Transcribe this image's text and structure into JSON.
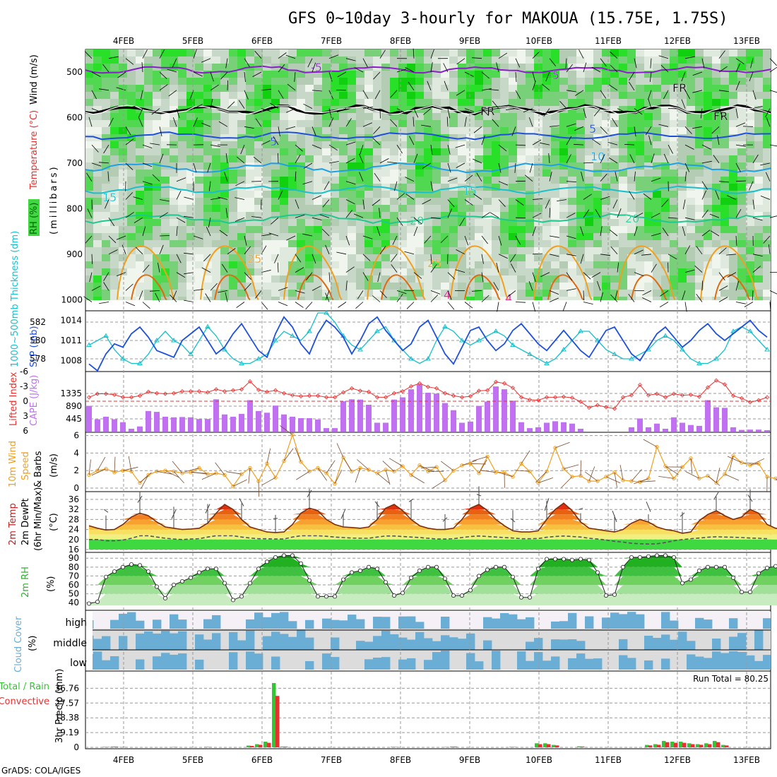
{
  "title": "GFS 0~10day 3-hourly for MAKOUA (15.75E, 1.75S)",
  "footer": "GrADS: COLA/IGES",
  "days": [
    "4FEB",
    "5FEB",
    "6FEB",
    "7FEB",
    "8FEB",
    "9FEB",
    "10FEB",
    "11FEB",
    "12FEB",
    "13FEB"
  ],
  "colors": {
    "purple": "#8a1ec8",
    "black": "#000000",
    "blue": "#1e50dc",
    "lightblue": "#1ea0e6",
    "cyan": "#18c0cc",
    "teal": "#1ec890",
    "orange": "#f0a020",
    "darkorange": "#e06a10",
    "magenta": "#e0108c",
    "rh_green": "#40d840",
    "cape": "#c070f0",
    "rain": "#30c830",
    "conv": "#e83030",
    "cloud": "#6aaed6",
    "cloud_bg": "#dcdcdc"
  },
  "panel_labels": {
    "upper": {
      "rh": "RH (%)",
      "temp": "Temperature (°C)",
      "wind": "Wind (m/s)",
      "mb": "(millibars)"
    },
    "thick": {
      "thick": "1000~500mb Thickness (dm)",
      "slp": "SLP (mb)"
    },
    "li": {
      "li": "Lifted Index",
      "cape": "CAPE (J/kg)"
    },
    "wind10": {
      "wind": "10m Wind",
      "speed": "Speed",
      "barbs": "& Barbs",
      "unit": "(m/s)"
    },
    "temp2m": {
      "t1": "2m Temp",
      "t2": "2m DewPt",
      "t3": "(6hr Min/Max)",
      "unit": "(°C)"
    },
    "rh2m": {
      "rh": "2m RH",
      "unit": "(%)"
    },
    "cloud": {
      "cloud": "Cloud Cover",
      "unit": "(%)"
    },
    "precip": {
      "total": "Total / Rain",
      "conv": "Convective",
      "precip": "3hr Precip (mm)",
      "run_total": "Run Total = 80.25"
    }
  },
  "chart_data": [
    {
      "name": "upper-air",
      "type": "heatmap",
      "yticks": [
        "500",
        "600",
        "700",
        "800",
        "900",
        "1000"
      ],
      "ylim": [
        1000,
        450
      ],
      "contour_labels": [
        "-5",
        "-5",
        "FR",
        "FR",
        "FR",
        "5",
        "5",
        "10",
        "15",
        "15",
        "20",
        "20",
        "25",
        "25",
        "4",
        "4"
      ]
    },
    {
      "name": "thickness-slp",
      "type": "line",
      "yticks_left": [
        "582",
        "580",
        "578"
      ],
      "yticks_right": [
        "1014",
        "1011",
        "1008"
      ],
      "thickness": [
        579.5,
        580,
        580.5,
        579,
        578,
        577.5,
        577.5,
        578.5,
        580,
        581,
        580,
        579.5,
        578.5,
        580,
        581.5,
        580.5,
        579,
        578,
        577.5,
        577.5,
        578,
        578.5,
        580,
        581,
        580.5,
        580,
        581,
        583,
        583,
        582,
        580.5,
        579.5,
        579,
        580,
        581,
        581.5,
        580,
        579,
        578,
        577.5,
        578,
        580,
        581.5,
        581,
        580,
        579.5,
        580,
        580.5,
        581,
        580.5,
        579.5,
        579,
        578.5,
        578,
        577.5,
        578,
        579,
        580,
        581,
        581,
        580,
        579,
        578.5,
        578,
        578,
        578.5,
        579,
        580,
        580.5,
        580,
        579,
        578,
        577.5,
        577.5,
        578,
        579,
        581,
        581.5,
        581,
        580,
        579
      ],
      "slp": [
        1007.5,
        1006.5,
        1009,
        1010.5,
        1010,
        1012,
        1013,
        1011.5,
        1009.5,
        1009,
        1008.5,
        1011,
        1012,
        1013,
        1011,
        1009,
        1010,
        1012,
        1013.5,
        1011.5,
        1009.5,
        1008.5,
        1012,
        1014.5,
        1013,
        1010.5,
        1009,
        1012,
        1014,
        1013,
        1011.5,
        1009,
        1011,
        1013.5,
        1014.5,
        1012.5,
        1011,
        1009.5,
        1010.5,
        1013,
        1014,
        1011.5,
        1009,
        1007.5,
        1010,
        1012.5,
        1013,
        1011,
        1009.5,
        1010.5,
        1012.5,
        1013.5,
        1012,
        1010.5,
        1009.5,
        1011,
        1012.5,
        1011,
        1009.5,
        1008.5,
        1010.5,
        1012.5,
        1013,
        1011,
        1009,
        1008,
        1010,
        1012,
        1013,
        1011.5,
        1010,
        1011,
        1012.5,
        1013.5,
        1012,
        1011,
        1012,
        1013,
        1014,
        1012.5,
        1011.5
      ]
    },
    {
      "name": "lifted-index-cape",
      "type": "bar",
      "yticks_left": [
        "-6",
        "-3",
        "0",
        "3",
        "6"
      ],
      "yticks_right": [
        "1335",
        "890",
        "445"
      ],
      "cape": [
        900,
        430,
        520,
        430,
        330,
        100,
        180,
        720,
        690,
        520,
        500,
        510,
        500,
        440,
        440,
        1130,
        600,
        520,
        620,
        1100,
        720,
        660,
        910,
        600,
        520,
        470,
        470,
        420,
        120,
        120,
        1060,
        1130,
        1120,
        940,
        310,
        310,
        1120,
        1200,
        1480,
        1650,
        1360,
        1330,
        1000,
        750,
        310,
        350,
        900,
        1050,
        1580,
        1480,
        1080,
        330,
        120,
        150,
        310,
        360,
        330,
        280,
        100,
        0,
        0,
        0,
        0,
        0,
        150,
        460,
        150,
        280,
        100,
        500,
        310,
        230,
        200,
        1100,
        850,
        830,
        150,
        60,
        70,
        70,
        50
      ],
      "lifted_index": [
        -0.8,
        -1.5,
        -1.5,
        -1.3,
        -0.8,
        -0.8,
        -1.1,
        -1.9,
        -1.6,
        -1.5,
        -1.6,
        -2,
        -2,
        -2,
        -1.8,
        -2.4,
        -2,
        -2.2,
        -2.4,
        -4,
        -2.3,
        -1.9,
        -2.2,
        -1.6,
        -1.2,
        -1,
        -1.1,
        -1.1,
        -0.8,
        -0.8,
        -1.8,
        -2.6,
        -2.1,
        -1.9,
        -0.8,
        -0.8,
        -1.6,
        -2,
        -3,
        -3.6,
        -2.9,
        -2.6,
        -1.6,
        -1.1,
        -0.8,
        -1,
        -2.1,
        -2.2,
        -3.9,
        -3.6,
        -2.7,
        -0.8,
        -0.3,
        -0.2,
        -0.8,
        -0.8,
        -0.9,
        -0.7,
        0.1,
        1.3,
        0.8,
        1.2,
        1.5,
        -0.8,
        -1.2,
        -3.3,
        -1.2,
        -1.5,
        -0.8,
        -1.5,
        -1.2,
        -1.3,
        -0.9,
        -2.8,
        -4.2,
        -3.4,
        -1.1,
        -0.6,
        0.2,
        -0.2,
        -0.8
      ]
    },
    {
      "name": "10m-wind",
      "type": "line",
      "yticks": [
        "6",
        "4",
        "2",
        "0"
      ],
      "speed": [
        1.5,
        2,
        2.2,
        1.8,
        2,
        1.9,
        0.6,
        1.5,
        1.9,
        2,
        1.9,
        1.7,
        1.8,
        2.3,
        1.6,
        1.7,
        1.5,
        0.2,
        1.6,
        2.3,
        0.8,
        2.8,
        1.2,
        3.1,
        6.1,
        3,
        1.9,
        2.3,
        1.7,
        0.5,
        3.5,
        1.9,
        2.3,
        2.1,
        1.7,
        2.1,
        1.9,
        2.5,
        1.5,
        2.6,
        1.9,
        2.4,
        0.9,
        2,
        2.6,
        2.8,
        1.7,
        3.6,
        1.8,
        1.8,
        1.3,
        2.8,
        1.9,
        0.6,
        1.9,
        4.6,
        2.2,
        1.3,
        1.4,
        0.8,
        0.8,
        1.3,
        1.8,
        0.9,
        0.8,
        0.7,
        1.1,
        4.7,
        2.5,
        1.1,
        2.4,
        3.4,
        1.1,
        1.4,
        0.6,
        1.6,
        3.7,
        2.9,
        2.6,
        2.8,
        1.3,
        1.1,
        0.4
      ]
    },
    {
      "name": "2m-temp",
      "type": "area",
      "yticks": [
        "36",
        "32",
        "28",
        "24",
        "20",
        "16"
      ],
      "temp": [
        25.5,
        24.5,
        23.8,
        24,
        26,
        29,
        30.5,
        29.5,
        27,
        25,
        24.5,
        24,
        24.2,
        24.5,
        26.5,
        30.5,
        34,
        32,
        28,
        25,
        24,
        23,
        22.8,
        23,
        26,
        30.5,
        32.5,
        31.5,
        28,
        26,
        25,
        24.8,
        24.5,
        25,
        28,
        32.5,
        34,
        31.5,
        28,
        25.5,
        24.5,
        24,
        24,
        24.5,
        28,
        32.5,
        34,
        31.5,
        28,
        25.5,
        23.5,
        23,
        23,
        23.5,
        28,
        32,
        34.5,
        31.5,
        27,
        24.5,
        24,
        23.5,
        23,
        24,
        26.5,
        28,
        27,
        25,
        24,
        23.5,
        22.5,
        23,
        27.5,
        30,
        31.5,
        29.5,
        28,
        29,
        32,
        30.5,
        26,
        24.5,
        24,
        23,
        22.5
      ],
      "dewpoint": [
        20,
        20,
        19.5,
        19.5,
        19.8,
        20.5,
        21.5,
        21.5,
        21,
        20.5,
        20.2,
        20,
        20.2,
        20.3,
        21,
        21.5,
        21.5,
        21.5,
        21,
        20.6,
        20.3,
        20.3,
        20.2,
        20.2,
        21,
        21.5,
        21.5,
        21.5,
        21.3,
        21,
        20.8,
        20.6,
        20.5,
        20.5,
        21,
        21.4,
        21.4,
        21.2,
        21,
        20.8,
        20.5,
        20.2,
        20.2,
        20.3,
        20.8,
        21.2,
        21.4,
        21.2,
        21,
        20.8,
        20.6,
        20.3,
        20.3,
        20.4,
        20.9,
        21.2,
        21.4,
        21.2,
        21,
        20.5,
        20.2,
        19.8,
        19.3,
        19,
        18.5,
        18.3,
        18.2,
        18.3,
        18.8,
        19.5,
        20,
        20.3,
        20.6,
        20.9,
        21.1,
        21,
        20.9,
        20.8,
        20.6,
        20.5,
        20.3
      ]
    },
    {
      "name": "2m-rh",
      "type": "area",
      "yticks": [
        "90",
        "80",
        "70",
        "60",
        "50",
        "40"
      ],
      "rh": [
        39,
        41,
        69,
        75,
        80,
        83,
        82,
        75,
        58,
        45,
        60,
        64,
        68,
        74,
        78,
        78,
        62,
        43,
        47,
        62,
        78,
        86,
        91,
        93,
        93,
        84,
        65,
        47,
        47,
        47,
        66,
        74,
        76,
        80,
        78,
        63,
        48,
        51,
        68,
        76,
        80,
        80,
        67,
        48,
        48,
        54,
        70,
        77,
        80,
        80,
        69,
        46,
        46,
        78,
        89,
        89,
        89,
        88,
        89,
        88,
        74,
        48,
        49,
        80,
        91,
        91,
        92,
        93,
        93,
        91,
        62,
        66,
        76,
        80,
        80,
        80,
        68,
        52,
        52,
        73,
        79,
        81,
        84,
        87,
        85
      ]
    },
    {
      "name": "cloud-cover",
      "type": "heatmap",
      "rows": [
        "high",
        "middle",
        "low"
      ]
    },
    {
      "name": "3hr-precip",
      "type": "bar",
      "yticks": [
        "36.76",
        "27.57",
        "18.38",
        "9.19",
        "0"
      ],
      "run_total": 80.25
    }
  ]
}
